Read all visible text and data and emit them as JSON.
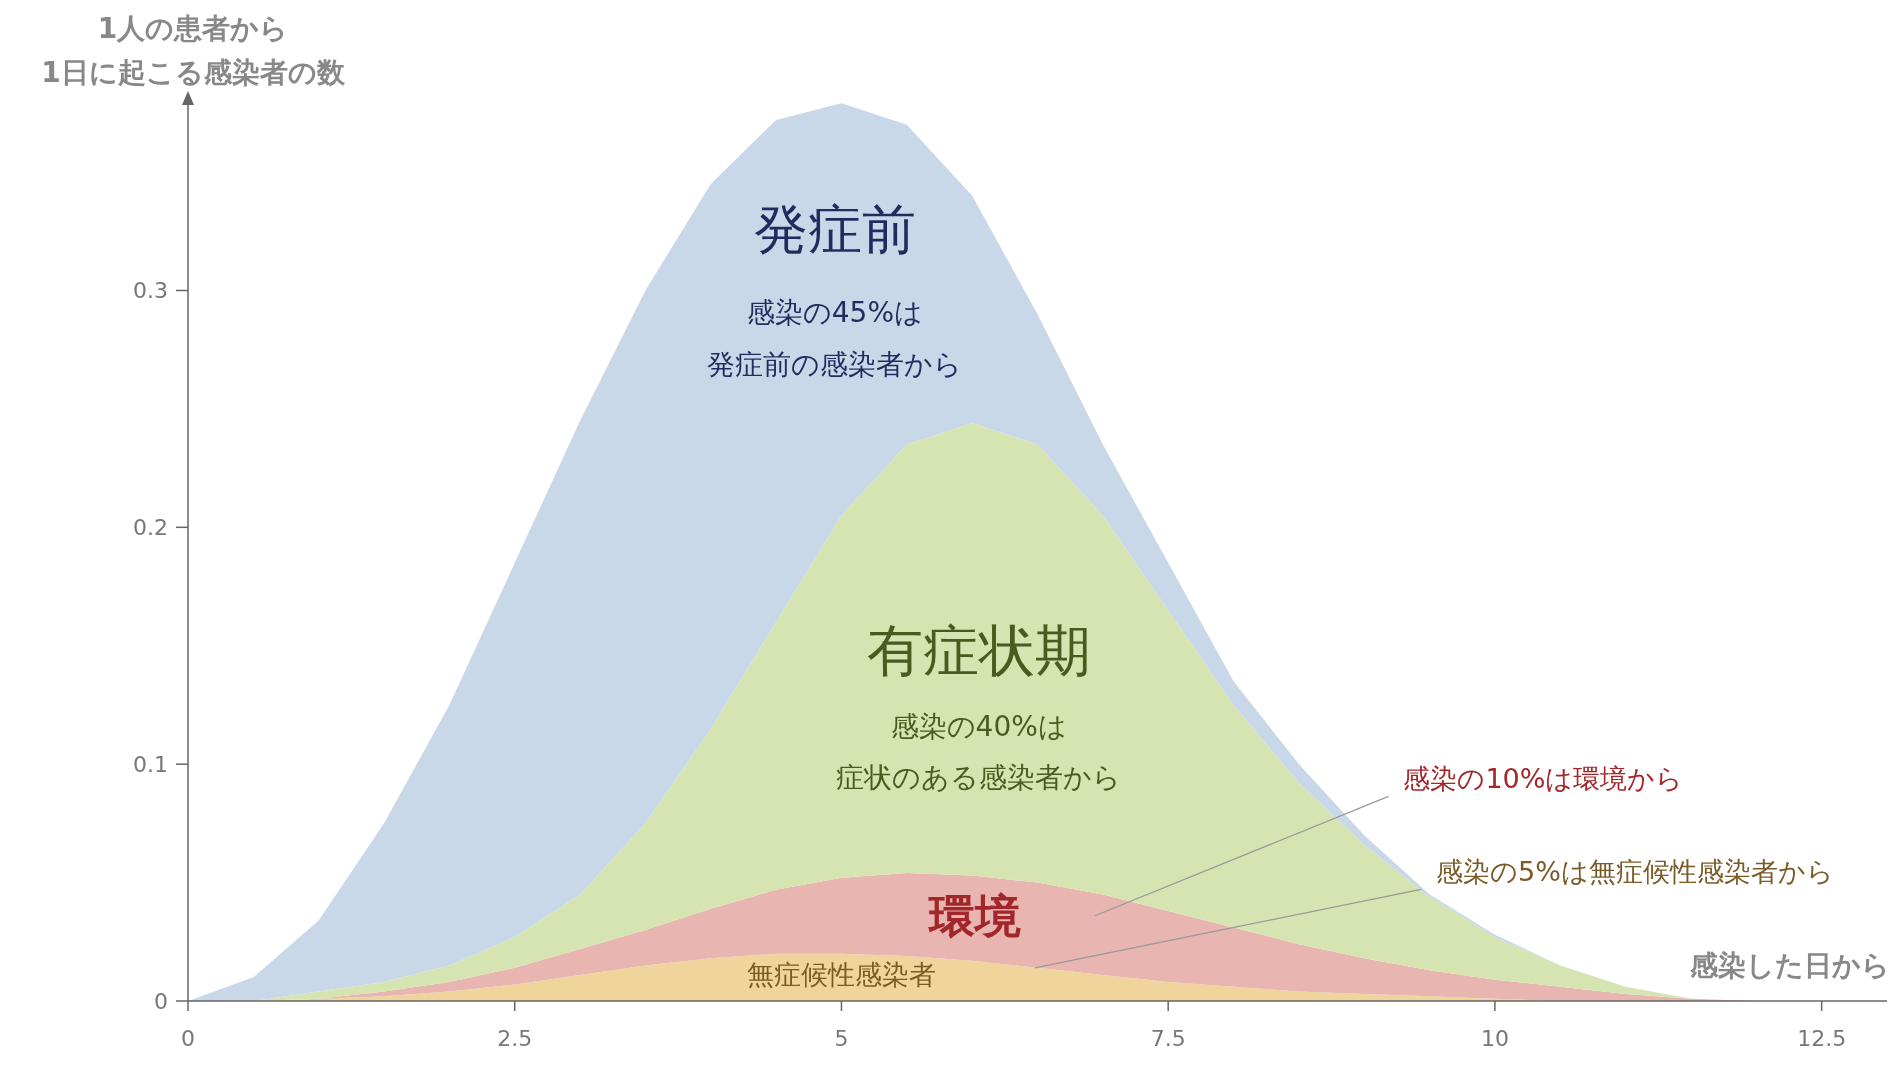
{
  "chart_data": {
    "type": "area",
    "stacked": true,
    "ylabel": "1人の患者から\n1日に起こる感染者の数",
    "xlabel": "感染した日から",
    "x": [
      0,
      0.5,
      1,
      1.5,
      2,
      2.5,
      3,
      3.5,
      4,
      4.5,
      5,
      5.5,
      6,
      6.5,
      7,
      7.5,
      8,
      8.5,
      9,
      9.5,
      10,
      10.5,
      11,
      11.5,
      12
    ],
    "series": [
      {
        "name": "無症候性感染者",
        "color": "#efd49c",
        "values": [
          0,
          0,
          0.001,
          0.002,
          0.004,
          0.007,
          0.011,
          0.015,
          0.018,
          0.02,
          0.02,
          0.019,
          0.017,
          0.014,
          0.011,
          0.008,
          0.006,
          0.004,
          0.003,
          0.002,
          0.001,
          0,
          0,
          0,
          0
        ]
      },
      {
        "name": "環境",
        "color": "#e8b5b1",
        "values": [
          0,
          0,
          0,
          0.002,
          0.004,
          0.007,
          0.011,
          0.015,
          0.021,
          0.027,
          0.032,
          0.035,
          0.036,
          0.036,
          0.034,
          0.03,
          0.025,
          0.02,
          0.015,
          0.011,
          0.008,
          0.006,
          0.003,
          0.001,
          0
        ]
      },
      {
        "name": "有症状期",
        "color": "#d6e4b1",
        "values": [
          0,
          0,
          0.003,
          0.004,
          0.007,
          0.013,
          0.023,
          0.045,
          0.076,
          0.113,
          0.153,
          0.181,
          0.191,
          0.185,
          0.16,
          0.127,
          0.094,
          0.068,
          0.048,
          0.031,
          0.018,
          0.009,
          0.003,
          0,
          0
        ]
      },
      {
        "name": "発症前",
        "color": "#c8d8e8",
        "values": [
          0,
          0.01,
          0.03,
          0.067,
          0.11,
          0.158,
          0.2,
          0.225,
          0.23,
          0.212,
          0.174,
          0.135,
          0.096,
          0.055,
          0.03,
          0.02,
          0.01,
          0.008,
          0.004,
          0.001,
          0.001,
          0,
          0,
          0,
          0
        ]
      }
    ],
    "xlim": [
      0,
      13
    ],
    "ylim": [
      0,
      0.38
    ],
    "xticks": [
      0,
      2.5,
      5,
      7.5,
      10,
      12.5
    ],
    "yticks": [
      0,
      0.1,
      0.2,
      0.3
    ],
    "grid": false,
    "annotations": [
      "感染の45%は",
      "発症前の感染者から",
      "感染の40%は",
      "症状のある感染者から",
      "感染の10%は環境から",
      {
        "text": "感染の5%は無症候性感染者から",
        "x": 6.48,
        "y": 0.014
      }
    ]
  }
}
